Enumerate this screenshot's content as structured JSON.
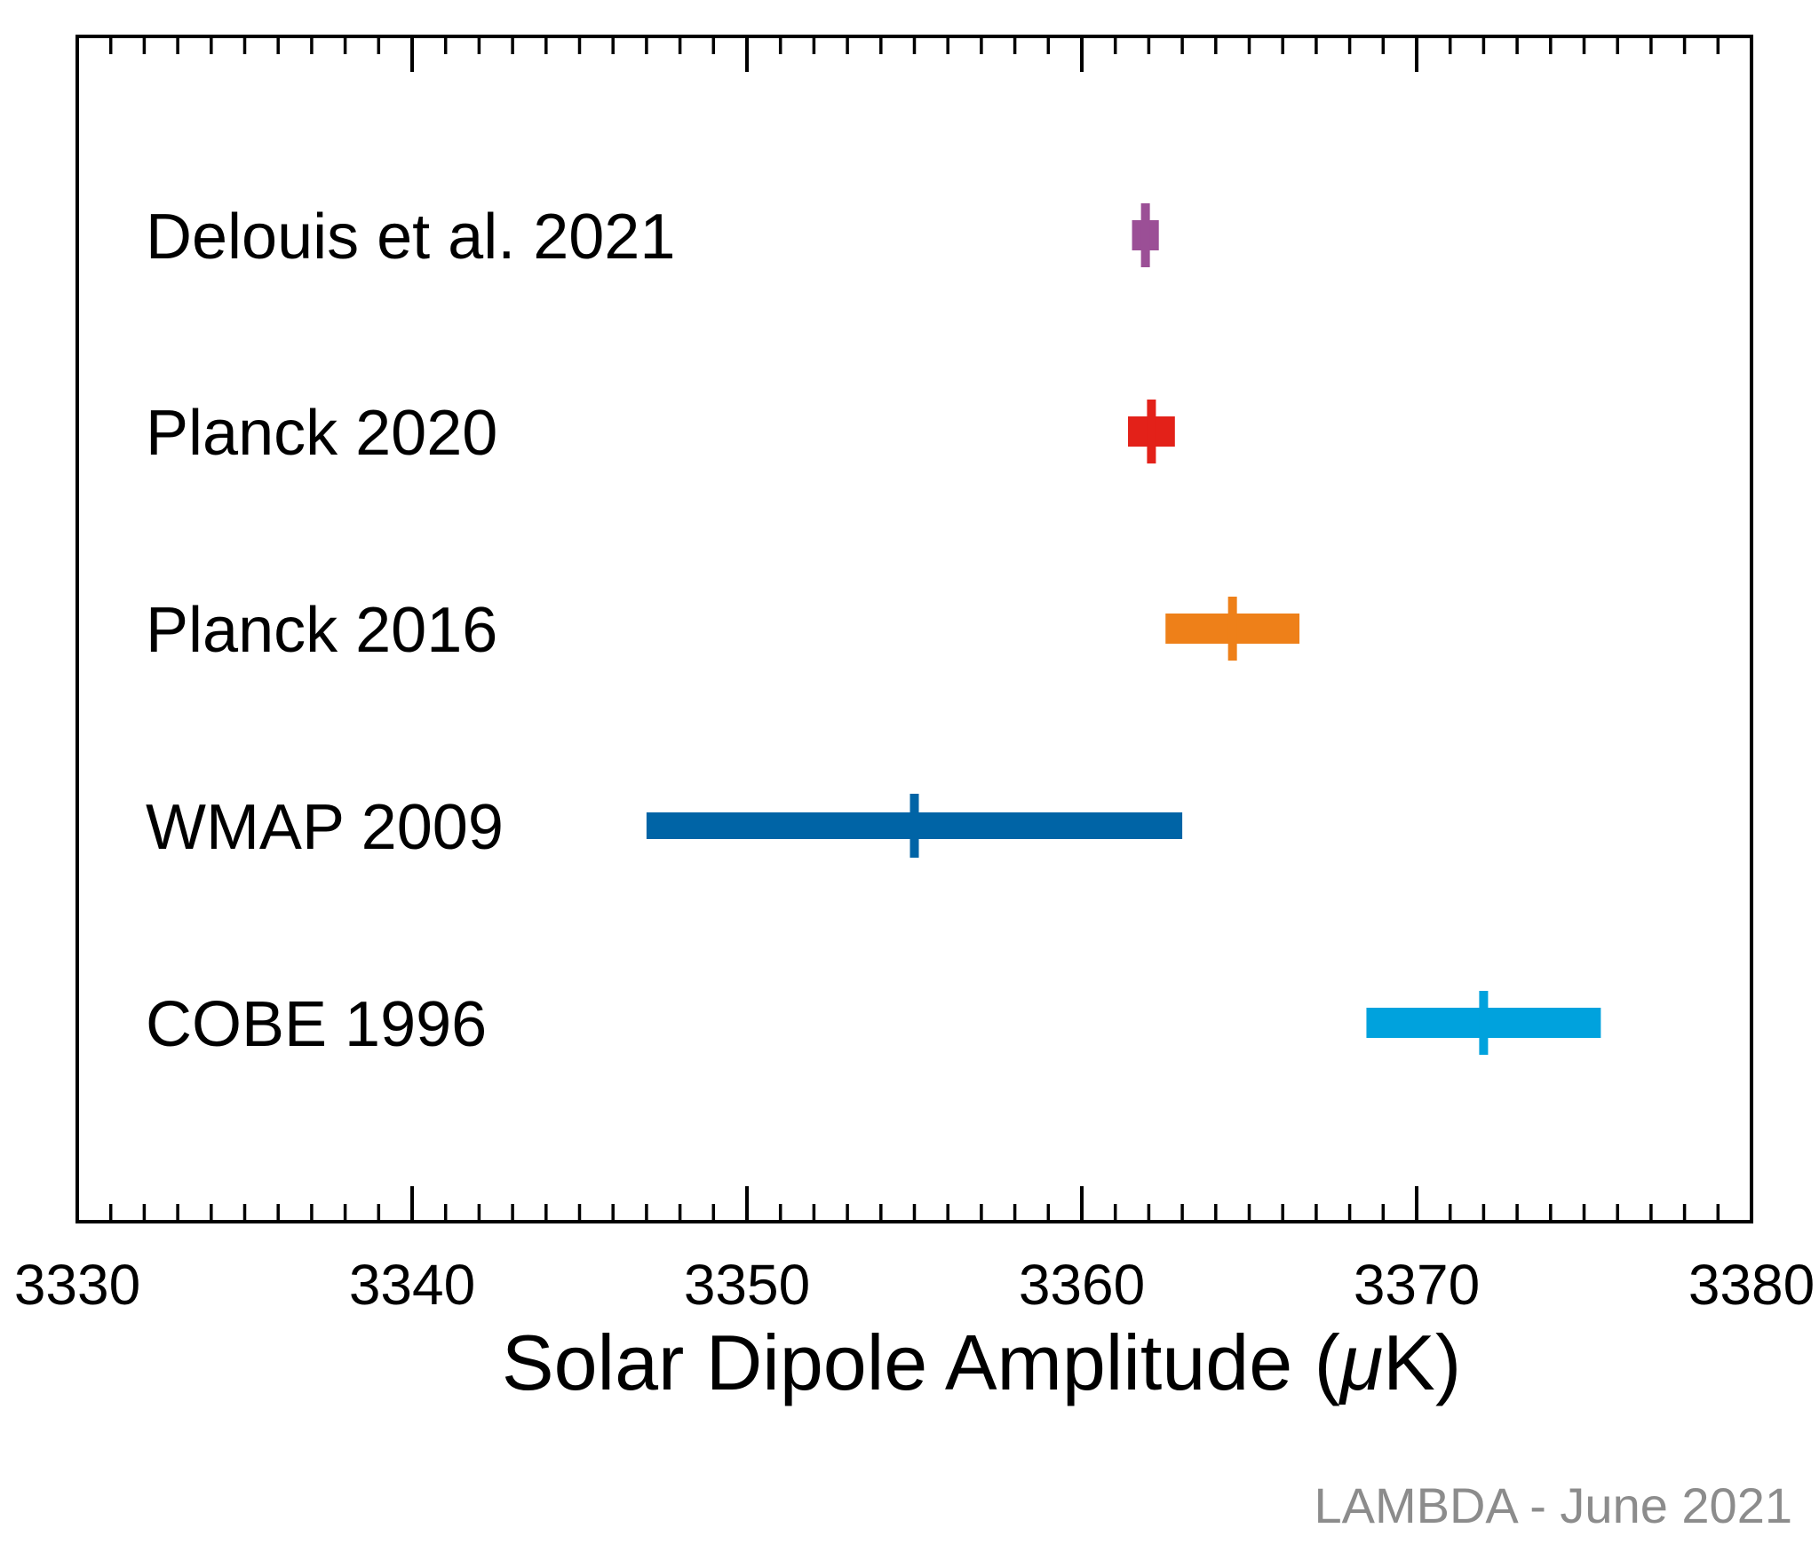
{
  "chart_data": {
    "type": "errorbar",
    "xlabel_prefix": "Solar Dipole Amplitude (",
    "xlabel_unit_symbol": "μ",
    "xlabel_suffix": "K)",
    "xlim": [
      3330,
      3380
    ],
    "x_ticks": [
      3330,
      3340,
      3350,
      3360,
      3370,
      3380
    ],
    "minor_tick_step": 1,
    "grid": false,
    "legend": "none",
    "credit": "LAMBDA - June 2021",
    "series": [
      {
        "name": "Delouis et al. 2021",
        "value": 3361.9,
        "error": 0.4,
        "color": "#9b4f96"
      },
      {
        "name": "Planck 2020",
        "value": 3362.08,
        "error": 0.7,
        "color": "#e32119"
      },
      {
        "name": "Planck 2016",
        "value": 3364.5,
        "error": 2.0,
        "color": "#ee8019"
      },
      {
        "name": "WMAP 2009",
        "value": 3355.0,
        "error": 8.0,
        "color": "#0064a6"
      },
      {
        "name": "COBE 1996",
        "value": 3372.0,
        "error": 3.5,
        "color": "#00a2dd"
      }
    ]
  }
}
